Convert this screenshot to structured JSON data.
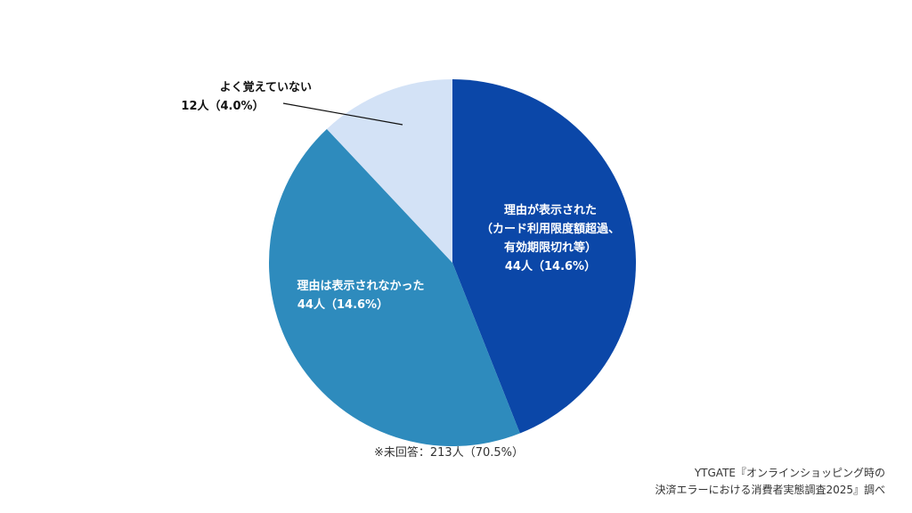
{
  "chart_data": {
    "type": "pie",
    "categories": [
      "理由が表示された\n（カード利用限度額超過、\n有効期限切れ等）",
      "理由は表示されなかった",
      "よく覚えていない"
    ],
    "values": [
      44,
      44,
      12
    ],
    "value_labels": [
      "44人（14.6%）",
      "44人（14.6%）",
      "12人（4.0%）"
    ],
    "colors": [
      "#0b47a8",
      "#2e8bbd",
      "#d3e2f6"
    ],
    "note": "※未回答：213人（70.5%）",
    "source": "YTGATE『オンラインショッピング時の\n決済エラーにおける消費者実態調査2025』調べ"
  }
}
